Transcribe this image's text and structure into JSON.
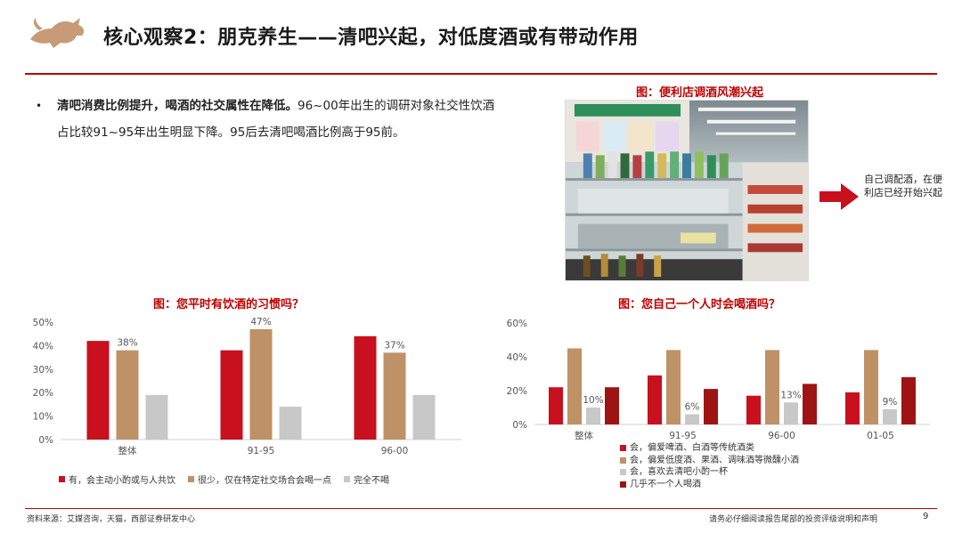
{
  "header": {
    "title": "核心观察2：朋克养生——清吧兴起，对低度酒或有带动作用"
  },
  "bullet": {
    "lead": "清吧消费比例提升，喝酒的社交属性在降低。",
    "body": "96~00年出生的调研对象社交性饮酒占比较91~95年出生明显下降。95后去清吧喝酒比例高于95前。"
  },
  "photo_figure": {
    "caption": "图：便利店调酒风潮兴起",
    "note": "自己调配酒，在便利店已经开始兴起"
  },
  "colors": {
    "red": "#c8101e",
    "tan": "#bf9166",
    "gray": "#c8c8c8",
    "darkred": "#9e1414",
    "accent": "#c00000"
  },
  "chart_data": [
    {
      "type": "bar",
      "title": "图：您平时有饮酒的习惯吗？",
      "categories": [
        "整体",
        "91-95",
        "96-00"
      ],
      "series": [
        {
          "name": "有，会主动小酌或与人共饮",
          "values": [
            42,
            38,
            44
          ]
        },
        {
          "name": "很少，仅在特定社交场合会喝一点",
          "values": [
            38,
            47,
            37
          ]
        },
        {
          "name": "完全不喝",
          "values": [
            19,
            14,
            19
          ]
        }
      ],
      "data_labels": [
        "38%",
        "47%",
        "37%"
      ],
      "yticks": [
        "0%",
        "10%",
        "20%",
        "30%",
        "40%",
        "50%"
      ],
      "ylim": [
        0,
        50
      ],
      "legend": "bottom"
    },
    {
      "type": "bar",
      "title": "图：您自己一个人时会喝酒吗？",
      "categories": [
        "整体",
        "91-95",
        "96-00",
        "01-05"
      ],
      "series": [
        {
          "name": "会，偏爱啤酒、白酒等传统酒类",
          "values": [
            22,
            29,
            17,
            19
          ]
        },
        {
          "name": "会，偏爱低度酒、果酒、调味酒等微醺小酒",
          "values": [
            45,
            44,
            44,
            44
          ]
        },
        {
          "name": "会，喜欢去清吧小酌一杯",
          "values": [
            10,
            6,
            13,
            9
          ]
        },
        {
          "name": "几乎不一个人喝酒",
          "values": [
            22,
            21,
            24,
            28
          ]
        }
      ],
      "data_labels": [
        "10%",
        "6%",
        "13%",
        "9%"
      ],
      "yticks": [
        "0%",
        "20%",
        "40%",
        "60%"
      ],
      "ylim": [
        0,
        60
      ],
      "legend": "bottom"
    }
  ],
  "footer": {
    "source": "资料来源：艾媒咨询，天猫，西部证券研发中心",
    "disclaimer": "请务必仔细阅读报告尾部的投资评级说明和声明",
    "page_number": "9"
  }
}
